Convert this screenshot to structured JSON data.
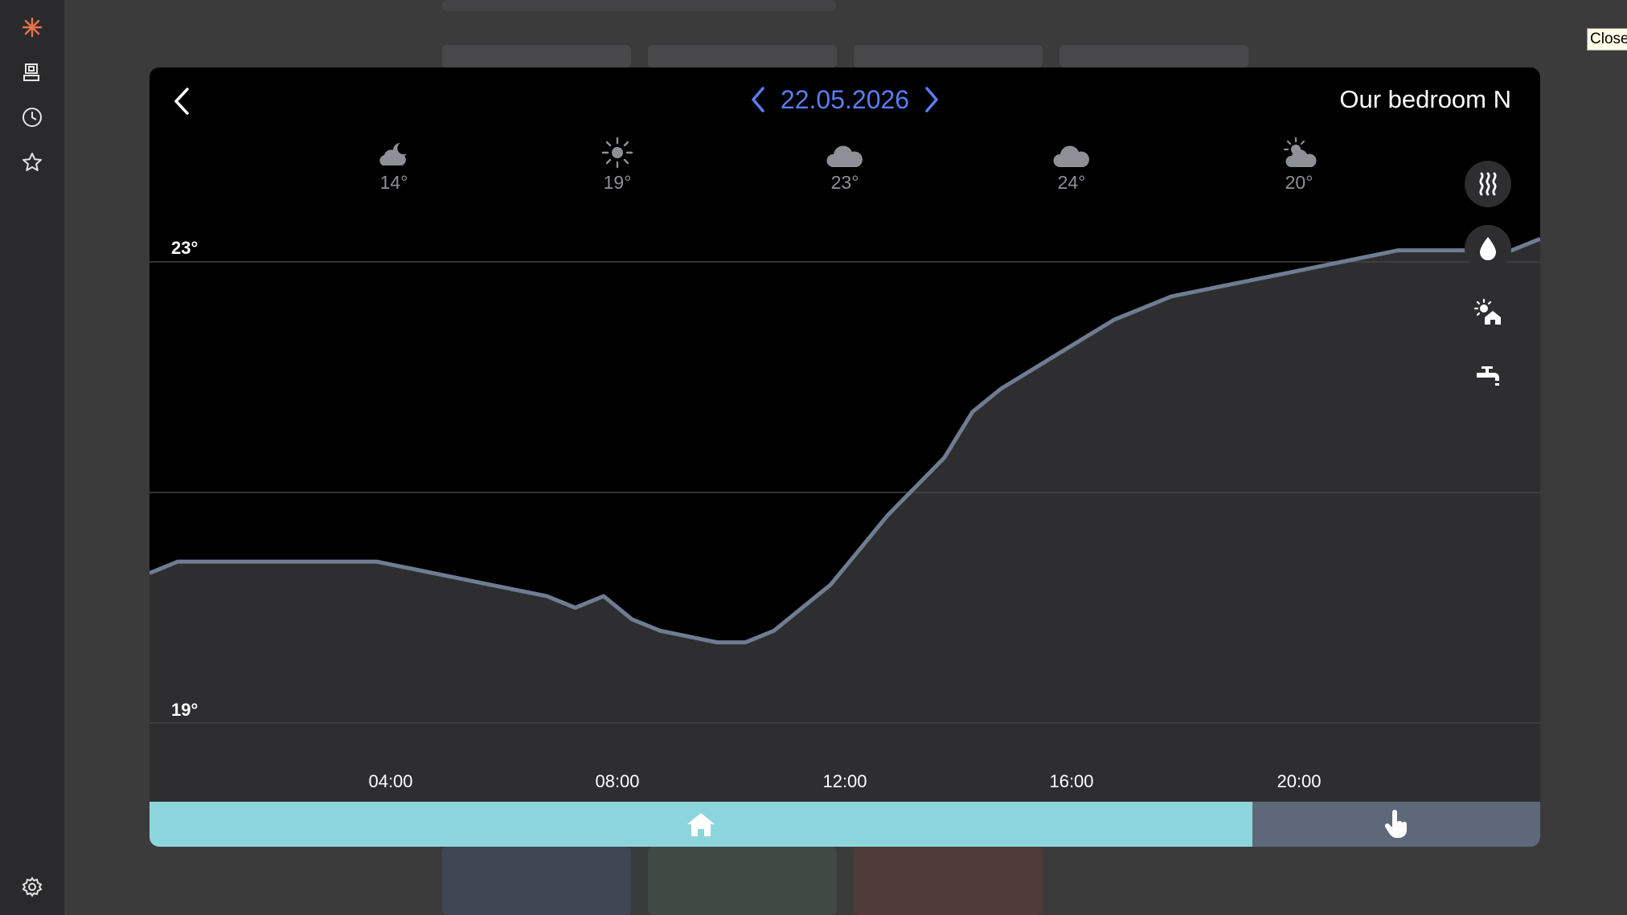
{
  "app": {
    "close_label": "Close"
  },
  "sidebar": {
    "items": [
      {
        "icon": "logo-icon"
      },
      {
        "icon": "devices-icon"
      },
      {
        "icon": "clock-icon"
      },
      {
        "icon": "star-icon"
      }
    ],
    "bottom_icon": "gear-icon"
  },
  "header": {
    "date": "22.05.2026",
    "room": "Our bedroom N"
  },
  "forecast": [
    {
      "time": "04:00",
      "icon": "moon-cloud-icon",
      "temp": "14°"
    },
    {
      "time": "08:00",
      "icon": "sun-icon",
      "temp": "19°"
    },
    {
      "time": "12:00",
      "icon": "cloud-icon",
      "temp": "23°"
    },
    {
      "time": "16:00",
      "icon": "cloud-icon",
      "temp": "24°"
    },
    {
      "time": "20:00",
      "icon": "sun-cloud-icon",
      "temp": "20°"
    }
  ],
  "side_buttons": [
    "heat-icon",
    "water-drop-icon",
    "sun-house-icon",
    "faucet-icon"
  ],
  "modes": [
    {
      "icon": "home-icon",
      "color": "#8dd5dc",
      "share": 0.79
    },
    {
      "icon": "hand-pointer-icon",
      "color": "#5e6878"
    }
  ],
  "colors": {
    "accent": "#5b7df2",
    "line": "#6f7c91",
    "fill": "#2e2e30"
  },
  "chart_data": {
    "type": "area",
    "xlabel": "",
    "ylabel": "",
    "ylim": [
      19,
      23
    ],
    "y_ticks": [
      "23°",
      "19°"
    ],
    "x_tick_labels": [
      "04:00",
      "08:00",
      "12:00",
      "16:00",
      "20:00"
    ],
    "x_tick_hours": [
      4,
      8,
      12,
      16,
      20
    ],
    "xlim_hours": [
      0,
      24.5
    ],
    "series": [
      {
        "x": [
          0,
          0.5,
          1,
          2,
          3,
          4,
          5,
          6,
          7,
          7.5,
          8,
          8.5,
          9,
          10,
          10.5,
          11,
          11.5,
          12,
          12.5,
          13,
          14,
          14.5,
          15,
          16,
          17,
          18,
          19,
          20,
          21,
          22,
          23,
          24,
          24.5
        ],
        "y": [
          20.3,
          20.4,
          20.4,
          20.4,
          20.4,
          20.4,
          20.3,
          20.2,
          20.1,
          20.0,
          20.1,
          19.9,
          19.8,
          19.7,
          19.7,
          19.8,
          20.0,
          20.2,
          20.5,
          20.8,
          21.3,
          21.7,
          21.9,
          22.2,
          22.5,
          22.7,
          22.8,
          22.9,
          23.0,
          23.1,
          23.1,
          23.1,
          23.2
        ]
      }
    ]
  }
}
